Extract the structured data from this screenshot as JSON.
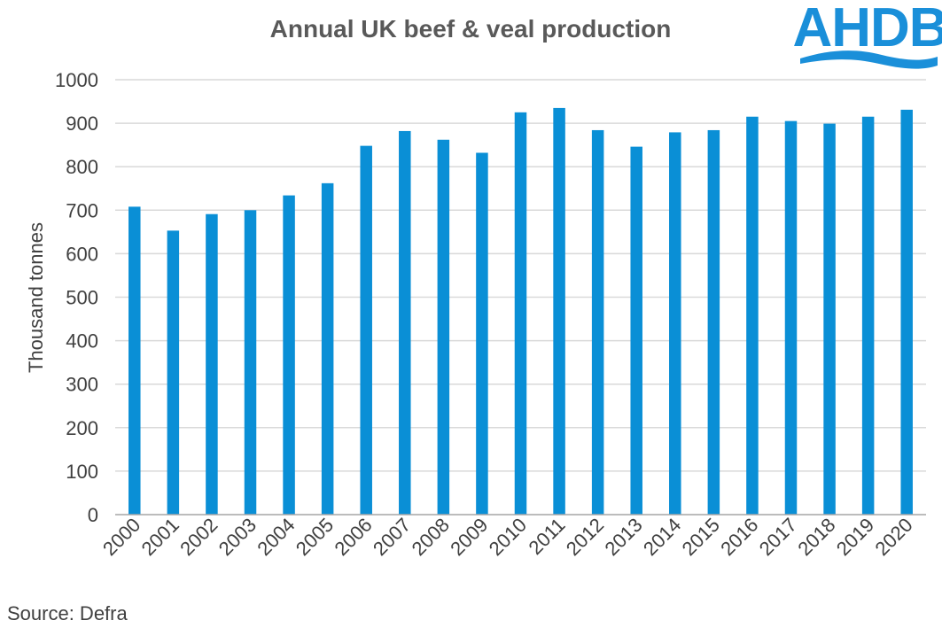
{
  "colors": {
    "bar": "#0A8FD6",
    "grid": "#D9D9D9",
    "axis": "#A6A6A6",
    "logo": "#1A8FD9"
  },
  "logo": {
    "text": "AHDB"
  },
  "source": "Source: Defra",
  "chart_data": {
    "type": "bar",
    "title": "Annual UK beef & veal production",
    "xlabel": "",
    "ylabel": "Thousand tonnes",
    "ylim": [
      0,
      1000
    ],
    "yticks": [
      0,
      100,
      200,
      300,
      400,
      500,
      600,
      700,
      800,
      900,
      1000
    ],
    "grid": true,
    "categories": [
      "2000",
      "2001",
      "2002",
      "2003",
      "2004",
      "2005",
      "2006",
      "2007",
      "2008",
      "2009",
      "2010",
      "2011",
      "2012",
      "2013",
      "2014",
      "2015",
      "2016",
      "2017",
      "2018",
      "2019",
      "2020"
    ],
    "values": [
      708,
      653,
      691,
      700,
      734,
      762,
      848,
      882,
      862,
      832,
      925,
      935,
      884,
      846,
      879,
      884,
      915,
      905,
      899,
      915,
      931
    ]
  }
}
